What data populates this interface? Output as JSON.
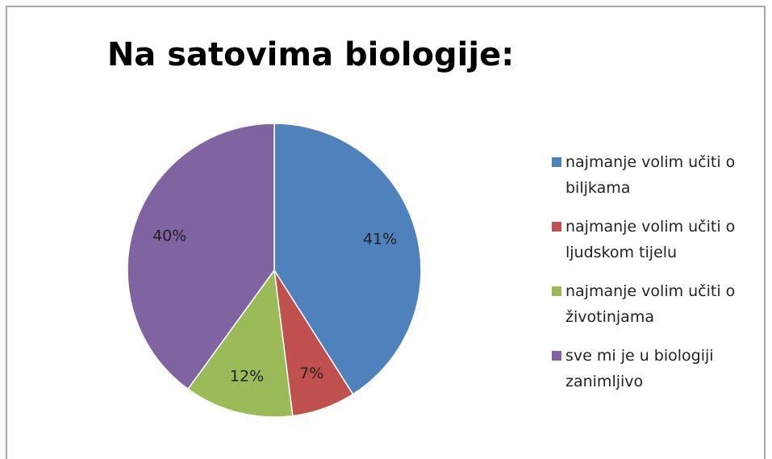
{
  "chart_data": {
    "type": "pie",
    "title": "Na satovima biologije:",
    "categories": [
      "najmanje volim učiti o biljkama",
      "najmanje volim učiti o ljudskom tijelu",
      "najmanje volim učiti o životinjama",
      "sve mi je u biologiji zanimljivo"
    ],
    "values": [
      41,
      7,
      12,
      40
    ],
    "value_labels": [
      "41%",
      "7%",
      "12%",
      "40%"
    ],
    "colors": [
      "#4f81bd",
      "#c0504d",
      "#9bbb59",
      "#8064a2"
    ],
    "legend": "right"
  }
}
